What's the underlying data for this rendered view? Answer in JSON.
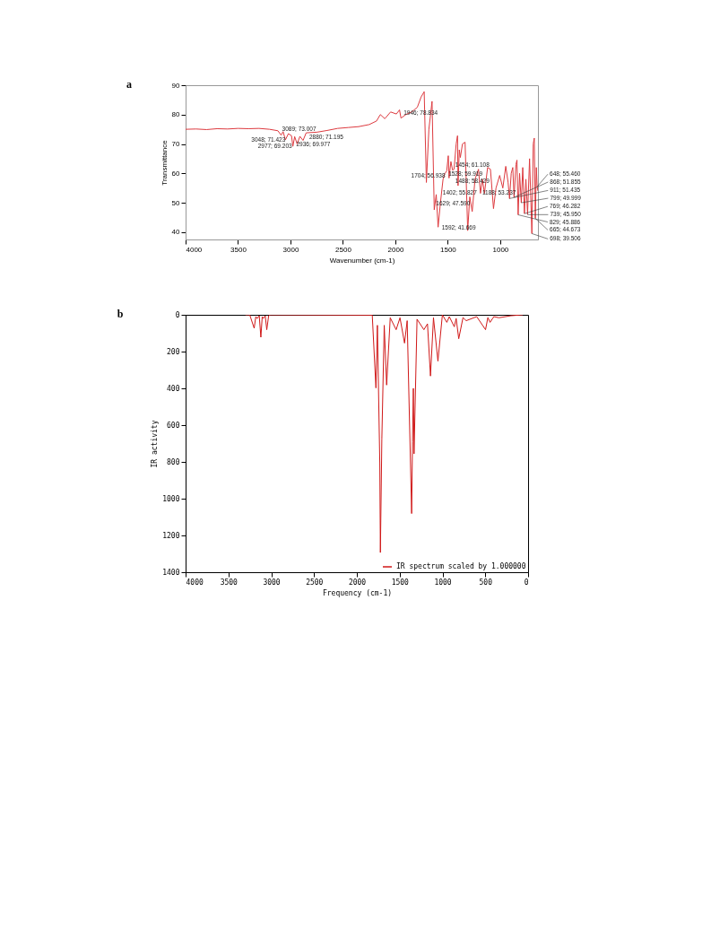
{
  "chart_data": [
    {
      "type": "line",
      "title": "a",
      "xlabel": "Wavenumber (cm-1)",
      "ylabel": "Transmittance",
      "xlim": [
        4000,
        640
      ],
      "ylim": [
        37.5,
        90
      ],
      "xticks": [
        4000,
        3500,
        3000,
        2500,
        2000,
        1500,
        1000
      ],
      "yticks": [
        40,
        50,
        60,
        70,
        80,
        90
      ],
      "series": [
        {
          "color": "#dd3a3f",
          "x": [
            4000,
            3900,
            3800,
            3700,
            3600,
            3500,
            3400,
            3300,
            3200,
            3120,
            3089,
            3070,
            3048,
            3020,
            2990,
            2977,
            2960,
            2936,
            2910,
            2880,
            2850,
            2750,
            2650,
            2550,
            2450,
            2350,
            2250,
            2180,
            2143,
            2100,
            2045,
            1990,
            1960,
            1946,
            1900,
            1840,
            1790,
            1754,
            1725,
            1704,
            1680,
            1650,
            1629,
            1610,
            1592,
            1570,
            1545,
            1528,
            1510,
            1495,
            1488,
            1470,
            1454,
            1440,
            1420,
            1407,
            1402,
            1390,
            1380,
            1360,
            1335,
            1310,
            1290,
            1267,
            1240,
            1207,
            1188,
            1170,
            1150,
            1120,
            1093,
            1064,
            1040,
            1005,
            975,
            947,
            925,
            911,
            895,
            880,
            868,
            850,
            840,
            829,
            815,
            799,
            785,
            769,
            755,
            739,
            720,
            698,
            685,
            675,
            665,
            655,
            648,
            640
          ],
          "values": [
            75,
            75.1,
            74.9,
            75.2,
            75.1,
            75.3,
            75.2,
            75.3,
            75,
            74.5,
            73,
            74.2,
            71.4,
            73.5,
            72.8,
            69.2,
            72.5,
            70,
            72.6,
            71.2,
            73.8,
            74,
            74.6,
            75.3,
            75.6,
            75.9,
            76.6,
            77.8,
            80,
            78.6,
            80.9,
            80.2,
            81.6,
            78.8,
            80,
            81,
            82.5,
            86,
            87.8,
            56.9,
            75,
            84.5,
            47.6,
            52.8,
            41.7,
            50,
            58,
            59.9,
            60.8,
            66,
            58.4,
            64,
            61.1,
            61.4,
            70,
            72.8,
            55.8,
            68,
            65.4,
            70,
            70.6,
            40.5,
            52,
            47,
            58,
            61.4,
            53.2,
            58,
            53.2,
            62,
            61.4,
            48,
            55,
            59.3,
            55,
            62.4,
            57,
            51.4,
            60,
            62,
            51.9,
            63,
            64.5,
            45.9,
            60,
            50,
            62,
            46.3,
            58,
            46,
            65,
            39.5,
            70,
            72,
            44.7,
            62,
            55.5,
            54
          ]
        }
      ],
      "annotations": [
        {
          "text": "3089; 73.007",
          "x": 3089,
          "y": 73.007
        },
        {
          "text": "3048; 71.423",
          "x": 3048,
          "y": 71.423
        },
        {
          "text": "2880; 71.195",
          "x": 2880,
          "y": 71.195
        },
        {
          "text": "2977; 69.203",
          "x": 2977,
          "y": 69.203
        },
        {
          "text": "2936; 69.977",
          "x": 2936,
          "y": 69.977
        },
        {
          "text": "1946; 78.834",
          "x": 1946,
          "y": 78.834
        },
        {
          "text": "1704; 56.938",
          "x": 1704,
          "y": 56.938
        },
        {
          "text": "1629; 47.590",
          "x": 1629,
          "y": 47.59
        },
        {
          "text": "1592; 41.669",
          "x": 1592,
          "y": 41.669
        },
        {
          "text": "1528; 59.919",
          "x": 1528,
          "y": 59.919
        },
        {
          "text": "1454; 61.108",
          "x": 1454,
          "y": 61.108
        },
        {
          "text": "1488; 58.429",
          "x": 1488,
          "y": 58.429
        },
        {
          "text": "1402; 55.827",
          "x": 1402,
          "y": 55.827
        },
        {
          "text": "1188; 53.237",
          "x": 1188,
          "y": 53.237
        },
        {
          "text": "911; 51.435",
          "x": 911,
          "y": 51.435
        },
        {
          "text": "868; 51.855",
          "x": 868,
          "y": 51.855
        },
        {
          "text": "829; 45.886",
          "x": 829,
          "y": 45.886
        },
        {
          "text": "739; 45.950",
          "x": 739,
          "y": 45.95
        },
        {
          "text": "799; 49.999",
          "x": 799,
          "y": 49.999
        },
        {
          "text": "769; 46.282",
          "x": 769,
          "y": 46.282
        },
        {
          "text": "698; 39.506",
          "x": 698,
          "y": 39.506
        },
        {
          "text": "665; 44.673",
          "x": 665,
          "y": 44.673
        },
        {
          "text": "648; 55.460",
          "x": 648,
          "y": 55.46
        }
      ]
    },
    {
      "type": "line",
      "title": "b",
      "xlabel": "Frequency (cm-1)",
      "ylabel": "IR activity",
      "xlim": [
        4000,
        0
      ],
      "ylim": [
        1400,
        0
      ],
      "xticks": [
        4000,
        3500,
        3000,
        2500,
        2000,
        1500,
        1000,
        500,
        0
      ],
      "yticks": [
        0,
        200,
        400,
        600,
        800,
        1000,
        1200,
        1400
      ],
      "legend": "bottom right",
      "series": [
        {
          "name": "IR spectrum scaled by 1.000000",
          "color": "#d01818",
          "x": [
            3300,
            3251,
            3199,
            3180,
            3164,
            3140,
            3121,
            3105,
            3093,
            3070,
            3052,
            3030,
            3007,
            1820,
            1777,
            1760,
            1732,
            1725,
            1708,
            1680,
            1652,
            1610,
            1541,
            1496,
            1443,
            1412,
            1360,
            1350,
            1340,
            1332,
            1297,
            1217,
            1175,
            1140,
            1105,
            1053,
            1001,
            949,
            920,
            862,
            840,
            810,
            760,
            723,
            600,
            497,
            470,
            444,
            400,
            340,
            200,
            62
          ],
          "values": [
            0,
            0,
            73,
            10,
            20,
            5,
            122,
            10,
            20,
            5,
            81,
            5,
            0,
            2,
            398,
            57,
            805,
            1293,
            675,
            57,
            382,
            16,
            81,
            16,
            154,
            32,
            1081,
            691,
            400,
            756,
            24,
            81,
            49,
            333,
            16,
            252,
            0,
            41,
            10,
            65,
            20,
            130,
            15,
            32,
            10,
            81,
            15,
            41,
            10,
            16,
            5,
            0
          ]
        }
      ]
    }
  ]
}
